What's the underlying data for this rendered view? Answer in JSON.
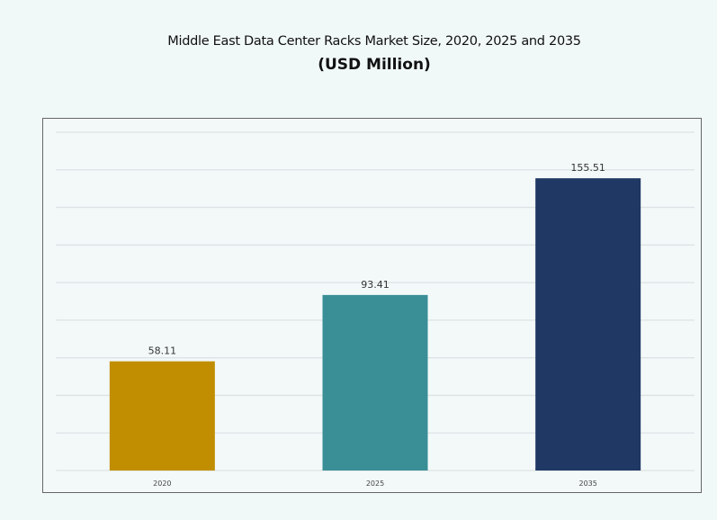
{
  "chart_data": {
    "type": "bar",
    "title": "Middle East Data Center Racks Market Size, 2020, 2025 and 2035",
    "subtitle": "(USD Million)",
    "categories": [
      "2020",
      "2025",
      "2035"
    ],
    "values": [
      58.11,
      93.41,
      155.51
    ],
    "value_labels": [
      "58.11",
      "93.41",
      "155.51"
    ],
    "colors": [
      "#c08e00",
      "#3a8e96",
      "#1f3864"
    ],
    "xlabel": "",
    "ylabel": "",
    "ylim": [
      0,
      180
    ],
    "grid": true,
    "y_axis_labels_shown": false,
    "legend": "none"
  }
}
